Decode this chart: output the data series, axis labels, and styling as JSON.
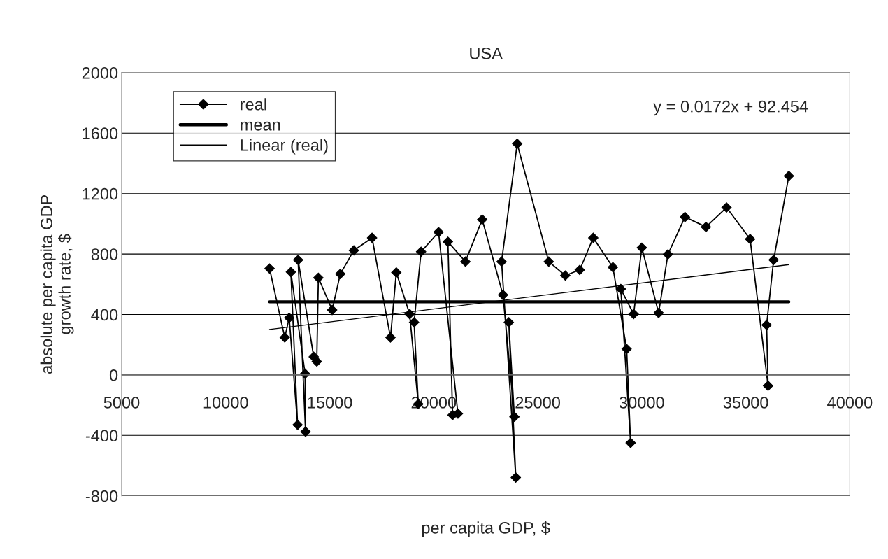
{
  "chart_data": {
    "type": "line",
    "title": "USA",
    "xlabel": "per capita GDP, $",
    "ylabel": "absolute per capita GDP\ngrowth rate, $",
    "xlim": [
      5000,
      40000
    ],
    "xticks": [
      5000,
      10000,
      15000,
      20000,
      25000,
      30000,
      35000,
      40000
    ],
    "ylim": [
      -800,
      2000
    ],
    "yticks": [
      -800,
      -400,
      0,
      400,
      800,
      1200,
      1600,
      2000
    ],
    "grid": "y",
    "legend": "top left",
    "annotations": [
      "y = 0.0172x + 92.454"
    ],
    "series": [
      {
        "name": "real",
        "color": "#000000",
        "marker": "diamond",
        "line_style": "solid",
        "x": [
          12110,
          12840,
          13053,
          13456,
          13133,
          13816,
          13840,
          13480,
          14232,
          14378,
          14456,
          15118,
          15508,
          16161,
          17036,
          17922,
          18201,
          18841,
          19258,
          19056,
          19392,
          20233,
          21162,
          20906,
          20681,
          21522,
          22330,
          23329,
          23877,
          23608,
          23945,
          23262,
          24012,
          25527,
          26323,
          27018,
          27668,
          28611,
          29273,
          29464,
          28992,
          29609,
          30002,
          30810,
          31257,
          32077,
          33086,
          34074,
          35207,
          36069,
          36001,
          36338,
          37068
        ],
        "values": [
          704,
          248,
          378,
          -330,
          681,
          8,
          -376,
          761,
          120,
          89,
          643,
          430,
          668,
          824,
          907,
          248,
          678,
          403,
          -192,
          348,
          815,
          945,
          -256,
          -265,
          881,
          750,
          1028,
          530,
          -277,
          348,
          -679,
          750,
          1530,
          750,
          658,
          695,
          907,
          713,
          172,
          -450,
          569,
          403,
          842,
          410,
          798,
          1045,
          979,
          1108,
          899,
          -72,
          331,
          761,
          1317
        ]
      },
      {
        "name": "mean",
        "color": "#000000",
        "marker": "none",
        "line_style": "solid",
        "x": [
          12110,
          37068
        ],
        "values": [
          484,
          484
        ]
      },
      {
        "name": "Linear (real)",
        "color": "#000000",
        "marker": "none",
        "line_style": "solid",
        "x": [
          12110,
          37068
        ],
        "values": [
          301,
          730
        ]
      }
    ]
  }
}
